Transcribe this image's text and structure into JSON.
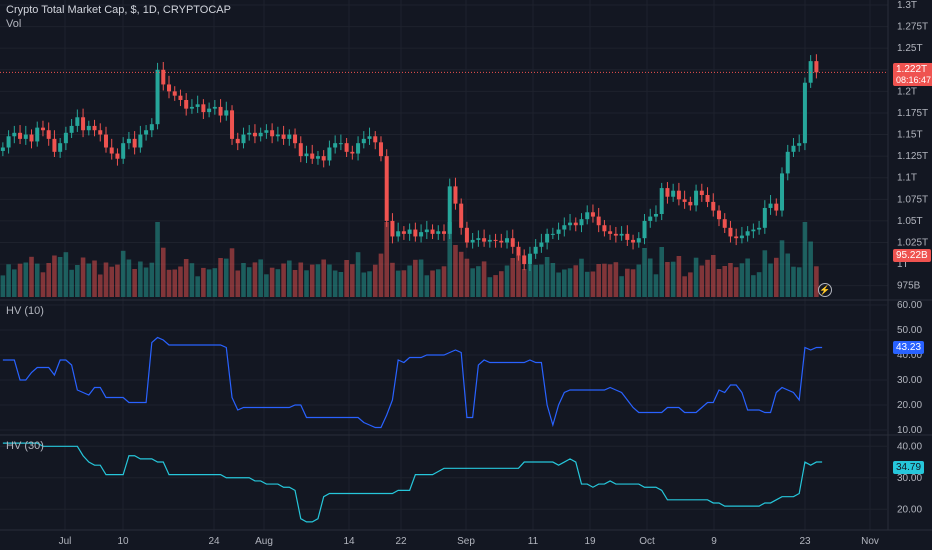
{
  "header": {
    "title": "Crypto Total Market Cap, $, 1D, CRYPTOCAP",
    "volume_label": "Vol",
    "hv10_label": "HV (10)",
    "hv30_label": "HV (30)"
  },
  "colors": {
    "background": "#131722",
    "up": "#26a69a",
    "down": "#ef5350",
    "hv10": "#2962ff",
    "hv30": "#26c6da",
    "grid": "#1e222d"
  },
  "price_tags": {
    "last_price": "1.222T",
    "countdown": "08:16:47",
    "volume": "95.22B",
    "hv10": "43.23",
    "hv30": "34.79"
  },
  "chart_data": [
    {
      "type": "candlestick",
      "title": "Crypto Total Market Cap, $, 1D, CRYPTOCAP",
      "y_unit": "T",
      "ylim": [
        0.97,
        1.3
      ],
      "y_ticks": [
        "1.3T",
        "1.275T",
        "1.25T",
        "1.225T",
        "1.2T",
        "1.175T",
        "1.15T",
        "1.125T",
        "1.1T",
        "1.075T",
        "1.05T",
        "1.025T",
        "1T",
        "975B"
      ],
      "x_ticks": [
        "Jul",
        "10",
        "24",
        "Aug",
        "14",
        "22",
        "Sep",
        "11",
        "19",
        "Oct",
        "9",
        "23",
        "Nov"
      ],
      "close": [
        1.135,
        1.148,
        1.152,
        1.145,
        1.15,
        1.142,
        1.158,
        1.155,
        1.145,
        1.13,
        1.14,
        1.152,
        1.16,
        1.17,
        1.155,
        1.16,
        1.155,
        1.15,
        1.135,
        1.128,
        1.122,
        1.14,
        1.145,
        1.135,
        1.15,
        1.155,
        1.162,
        1.225,
        1.208,
        1.2,
        1.195,
        1.19,
        1.18,
        1.182,
        1.185,
        1.176,
        1.18,
        1.182,
        1.172,
        1.178,
        1.145,
        1.14,
        1.15,
        1.152,
        1.148,
        1.152,
        1.155,
        1.148,
        1.15,
        1.145,
        1.15,
        1.14,
        1.125,
        1.128,
        1.122,
        1.125,
        1.12,
        1.135,
        1.14,
        1.14,
        1.13,
        1.128,
        1.14,
        1.145,
        1.148,
        1.141,
        1.125,
        1.05,
        1.032,
        1.038,
        1.035,
        1.04,
        1.032,
        1.037,
        1.04,
        1.035,
        1.038,
        1.035,
        1.09,
        1.07,
        1.042,
        1.025,
        1.028,
        1.03,
        1.026,
        1.028,
        1.027,
        1.025,
        1.03,
        1.02,
        1.01,
        1.0,
        1.012,
        1.02,
        1.025,
        1.035,
        1.035,
        1.04,
        1.045,
        1.048,
        1.045,
        1.052,
        1.06,
        1.055,
        1.045,
        1.038,
        1.035,
        1.033,
        1.035,
        1.028,
        1.025,
        1.03,
        1.05,
        1.055,
        1.058,
        1.088,
        1.078,
        1.085,
        1.075,
        1.072,
        1.068,
        1.085,
        1.08,
        1.072,
        1.062,
        1.052,
        1.042,
        1.032,
        1.03,
        1.033,
        1.038,
        1.04,
        1.042,
        1.065,
        1.07,
        1.062,
        1.105,
        1.13,
        1.137,
        1.14,
        1.21,
        1.235,
        1.222
      ],
      "series": [
        {
          "name": "Vol",
          "unit": "B",
          "latest": 95.22
        },
        {
          "name": "HV (10)",
          "latest": 43.23,
          "ylim": [
            10,
            60
          ],
          "ticks": [
            60,
            50,
            40,
            30,
            20,
            10
          ],
          "values": [
            38,
            38,
            38,
            30,
            30,
            33,
            35,
            35,
            35,
            32,
            38,
            38,
            36,
            26,
            25,
            24,
            27,
            27,
            23,
            23,
            23,
            23,
            21,
            21,
            21,
            21,
            45,
            47,
            46,
            44,
            44,
            44,
            44,
            44,
            44,
            44,
            44,
            44,
            44,
            43,
            23,
            18,
            19,
            19,
            19,
            19,
            19,
            19,
            19,
            19,
            19,
            20,
            20,
            15,
            15,
            15,
            15,
            15,
            15,
            15,
            15,
            15,
            15,
            13,
            12,
            11,
            11,
            16,
            22,
            38,
            37,
            39,
            39,
            39,
            40,
            40,
            40,
            40,
            41,
            42,
            41,
            15,
            15,
            36,
            38,
            37,
            37,
            37,
            37,
            37,
            37,
            37,
            38,
            37,
            37,
            20,
            12,
            20,
            25,
            26,
            26,
            26,
            26,
            26,
            26,
            26,
            27,
            26,
            25,
            22,
            19,
            17,
            17,
            17,
            17,
            17,
            19,
            19,
            19,
            17,
            17,
            17,
            19,
            21,
            21,
            26,
            25,
            28,
            28,
            25,
            18,
            18,
            18,
            17,
            17,
            25,
            27,
            26,
            25,
            22,
            43,
            42,
            43,
            43
          ],
          "note": "blue line"
        },
        {
          "name": "HV (30)",
          "latest": 34.79,
          "ylim": [
            15,
            42
          ],
          "ticks": [
            40,
            30,
            20
          ],
          "values": [
            41,
            41,
            41,
            41,
            41,
            41,
            41,
            40,
            40,
            40,
            40,
            40,
            40,
            40,
            37,
            35,
            34,
            34,
            31,
            31,
            31,
            31,
            37,
            37,
            36,
            36,
            36,
            35,
            35,
            31,
            31,
            31,
            31,
            31,
            31,
            31,
            31,
            31,
            31,
            30,
            30,
            30,
            30,
            30,
            29,
            29,
            28,
            28,
            28,
            27,
            27,
            26,
            17,
            16,
            16,
            17,
            24,
            25,
            25,
            25,
            25,
            25,
            25,
            25,
            25,
            25,
            25,
            25,
            25,
            26,
            26,
            26,
            31,
            31,
            31,
            31,
            32,
            33,
            33,
            33,
            33,
            33,
            33,
            33,
            33,
            33,
            33,
            33,
            33,
            33,
            33,
            35,
            35,
            35,
            35,
            35,
            35,
            34,
            35,
            36,
            35,
            28,
            28,
            27,
            28,
            28,
            29,
            28,
            28,
            28,
            28,
            28,
            27,
            27,
            27,
            26,
            23,
            23,
            23,
            23,
            23,
            23,
            23,
            23,
            22,
            22,
            21,
            21,
            21,
            21,
            21,
            21,
            21,
            22,
            22,
            23,
            24,
            24,
            24,
            25,
            35,
            34,
            35,
            35
          ]
        }
      ]
    }
  ]
}
